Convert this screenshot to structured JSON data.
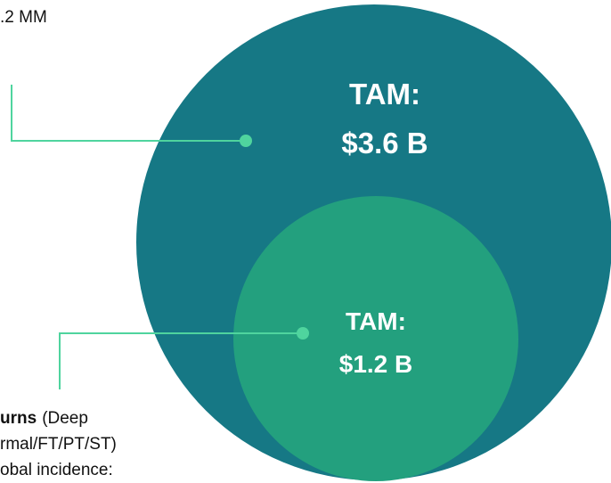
{
  "top_note": ".2 MM",
  "outer_circle": {
    "label": "TAM:",
    "value": "$3.6 B"
  },
  "inner_circle": {
    "label": "TAM:",
    "value": "$1.2 B"
  },
  "bottom_note": {
    "bold": "urns",
    "rest": "(Deep",
    "lines": [
      "rmal/FT/PT/ST)",
      "obal incidence:"
    ]
  }
}
